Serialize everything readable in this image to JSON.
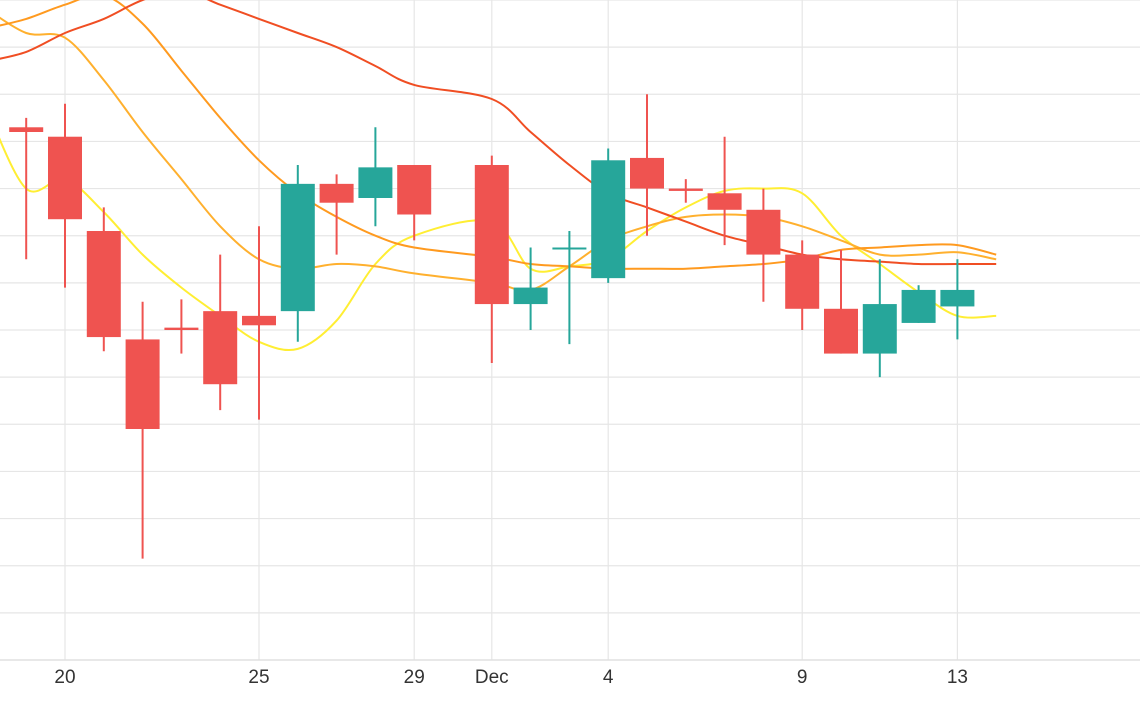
{
  "chart_data": {
    "type": "candlestick",
    "title": "",
    "xlabel": "",
    "ylabel": "",
    "x_ticks": [
      {
        "date": "Nov 20",
        "label": "20"
      },
      {
        "date": "Nov 25",
        "label": "25"
      },
      {
        "date": "Nov 29",
        "label": "29"
      },
      {
        "date": "Dec 1",
        "label": "Dec"
      },
      {
        "date": "Dec 4",
        "label": "4"
      },
      {
        "date": "Dec 9",
        "label": "9"
      },
      {
        "date": "Dec 13",
        "label": "13"
      }
    ],
    "x_range": [
      "Nov 18",
      "Dec 15"
    ],
    "y_range": [
      0,
      14
    ],
    "grid": {
      "horizontal": true,
      "vertical": true
    },
    "colors": {
      "up": "#26a69a",
      "down": "#ef5350",
      "grid": "#e6e6e6",
      "axis": "#e0e0e0"
    },
    "candles": [
      {
        "date": "Nov 19",
        "open": 11.3,
        "high": 11.5,
        "low": 8.5,
        "close": 11.2
      },
      {
        "date": "Nov 20",
        "open": 11.1,
        "high": 11.8,
        "low": 7.9,
        "close": 9.35
      },
      {
        "date": "Nov 21",
        "open": 9.1,
        "high": 9.6,
        "low": 6.55,
        "close": 6.85
      },
      {
        "date": "Nov 22",
        "open": 6.8,
        "high": 7.6,
        "low": 2.15,
        "close": 4.9
      },
      {
        "date": "Nov 23",
        "open": 7.05,
        "high": 7.65,
        "low": 6.5,
        "close": 7.0
      },
      {
        "date": "Nov 24",
        "open": 7.4,
        "high": 8.6,
        "low": 5.3,
        "close": 5.85
      },
      {
        "date": "Nov 25",
        "open": 7.3,
        "high": 9.2,
        "low": 5.1,
        "close": 7.1
      },
      {
        "date": "Nov 26",
        "open": 7.4,
        "high": 10.5,
        "low": 6.75,
        "close": 10.1
      },
      {
        "date": "Nov 27",
        "open": 10.1,
        "high": 10.3,
        "low": 8.6,
        "close": 9.7
      },
      {
        "date": "Nov 28",
        "open": 9.8,
        "high": 11.3,
        "low": 9.2,
        "close": 10.45
      },
      {
        "date": "Nov 29",
        "open": 10.5,
        "high": 10.5,
        "low": 8.9,
        "close": 9.45
      },
      {
        "date": "Dec 1",
        "open": 10.5,
        "high": 10.7,
        "low": 6.3,
        "close": 7.55
      },
      {
        "date": "Dec 2",
        "open": 7.55,
        "high": 8.75,
        "low": 7.0,
        "close": 7.9
      },
      {
        "date": "Dec 3",
        "open": 8.75,
        "high": 9.1,
        "low": 6.7,
        "close": 8.75
      },
      {
        "date": "Dec 4",
        "open": 8.1,
        "high": 10.85,
        "low": 8.0,
        "close": 10.6
      },
      {
        "date": "Dec 5",
        "open": 10.65,
        "high": 12.0,
        "low": 9.0,
        "close": 10.0
      },
      {
        "date": "Dec 6",
        "open": 10.0,
        "high": 10.2,
        "low": 9.7,
        "close": 9.95
      },
      {
        "date": "Dec 7",
        "open": 9.9,
        "high": 11.1,
        "low": 8.8,
        "close": 9.55
      },
      {
        "date": "Dec 8",
        "open": 9.55,
        "high": 10.0,
        "low": 7.6,
        "close": 8.6
      },
      {
        "date": "Dec 9",
        "open": 8.6,
        "high": 8.9,
        "low": 7.0,
        "close": 7.45
      },
      {
        "date": "Dec 10",
        "open": 7.45,
        "high": 8.7,
        "low": 6.5,
        "close": 6.5
      },
      {
        "date": "Dec 11",
        "open": 6.5,
        "high": 8.5,
        "low": 6.0,
        "close": 7.55
      },
      {
        "date": "Dec 12",
        "open": 7.15,
        "high": 7.95,
        "low": 7.15,
        "close": 7.85
      },
      {
        "date": "Dec 13",
        "open": 7.5,
        "high": 8.5,
        "low": 6.8,
        "close": 7.85
      }
    ],
    "series": [
      {
        "style": "line",
        "color": "#ffee33",
        "points": [
          {
            "date": "Nov 18",
            "y": 11.65
          },
          {
            "date": "Nov 19",
            "y": 10.0
          },
          {
            "date": "Nov 20",
            "y": 10.2
          },
          {
            "date": "Nov 21",
            "y": 9.5
          },
          {
            "date": "Nov 22",
            "y": 8.6
          },
          {
            "date": "Nov 23",
            "y": 7.9
          },
          {
            "date": "Nov 24",
            "y": 7.3
          },
          {
            "date": "Nov 25",
            "y": 6.75
          },
          {
            "date": "Nov 26",
            "y": 6.6
          },
          {
            "date": "Nov 27",
            "y": 7.2
          },
          {
            "date": "Nov 28",
            "y": 8.4
          },
          {
            "date": "Nov 29",
            "y": 9.0
          },
          {
            "date": "Dec 1",
            "y": 9.3
          },
          {
            "date": "Dec 2",
            "y": 8.3
          },
          {
            "date": "Dec 3",
            "y": 8.35
          },
          {
            "date": "Dec 4",
            "y": 8.5
          },
          {
            "date": "Dec 5",
            "y": 9.1
          },
          {
            "date": "Dec 6",
            "y": 9.6
          },
          {
            "date": "Dec 7",
            "y": 9.95
          },
          {
            "date": "Dec 8",
            "y": 10.0
          },
          {
            "date": "Dec 9",
            "y": 9.9
          },
          {
            "date": "Dec 10",
            "y": 9.0
          },
          {
            "date": "Dec 11",
            "y": 8.4
          },
          {
            "date": "Dec 12",
            "y": 7.8
          },
          {
            "date": "Dec 13",
            "y": 7.3
          },
          {
            "date": "Dec 14",
            "y": 7.3
          }
        ]
      },
      {
        "style": "line",
        "color": "#ffb02e",
        "points": [
          {
            "date": "Nov 18",
            "y": 13.8
          },
          {
            "date": "Nov 19",
            "y": 13.3
          },
          {
            "date": "Nov 20",
            "y": 13.2
          },
          {
            "date": "Nov 21",
            "y": 12.3
          },
          {
            "date": "Nov 22",
            "y": 11.2
          },
          {
            "date": "Nov 23",
            "y": 10.2
          },
          {
            "date": "Nov 24",
            "y": 9.2
          },
          {
            "date": "Nov 25",
            "y": 8.5
          },
          {
            "date": "Nov 26",
            "y": 8.3
          },
          {
            "date": "Nov 27",
            "y": 8.4
          },
          {
            "date": "Nov 28",
            "y": 8.35
          },
          {
            "date": "Nov 29",
            "y": 8.2
          },
          {
            "date": "Dec 1",
            "y": 8.0
          },
          {
            "date": "Dec 2",
            "y": 7.85
          },
          {
            "date": "Dec 3",
            "y": 8.35
          },
          {
            "date": "Dec 4",
            "y": 8.9
          },
          {
            "date": "Dec 5",
            "y": 9.2
          },
          {
            "date": "Dec 6",
            "y": 9.4
          },
          {
            "date": "Dec 7",
            "y": 9.45
          },
          {
            "date": "Dec 8",
            "y": 9.4
          },
          {
            "date": "Dec 9",
            "y": 9.2
          },
          {
            "date": "Dec 10",
            "y": 8.9
          },
          {
            "date": "Dec 11",
            "y": 8.6
          },
          {
            "date": "Dec 12",
            "y": 8.6
          },
          {
            "date": "Dec 13",
            "y": 8.65
          },
          {
            "date": "Dec 14",
            "y": 8.5
          }
        ]
      },
      {
        "style": "line",
        "color": "#ff9a1f",
        "points": [
          {
            "date": "Nov 18",
            "y": 13.4
          },
          {
            "date": "Nov 19",
            "y": 13.6
          },
          {
            "date": "Nov 20",
            "y": 13.9
          },
          {
            "date": "Nov 21",
            "y": 14.1
          },
          {
            "date": "Nov 22",
            "y": 13.5
          },
          {
            "date": "Nov 23",
            "y": 12.5
          },
          {
            "date": "Nov 24",
            "y": 11.5
          },
          {
            "date": "Nov 25",
            "y": 10.6
          },
          {
            "date": "Nov 26",
            "y": 9.9
          },
          {
            "date": "Nov 27",
            "y": 9.4
          },
          {
            "date": "Nov 28",
            "y": 9.0
          },
          {
            "date": "Nov 29",
            "y": 8.75
          },
          {
            "date": "Dec 1",
            "y": 8.55
          },
          {
            "date": "Dec 2",
            "y": 8.4
          },
          {
            "date": "Dec 3",
            "y": 8.35
          },
          {
            "date": "Dec 4",
            "y": 8.3
          },
          {
            "date": "Dec 5",
            "y": 8.3
          },
          {
            "date": "Dec 6",
            "y": 8.3
          },
          {
            "date": "Dec 7",
            "y": 8.35
          },
          {
            "date": "Dec 8",
            "y": 8.4
          },
          {
            "date": "Dec 9",
            "y": 8.5
          },
          {
            "date": "Dec 10",
            "y": 8.7
          },
          {
            "date": "Dec 11",
            "y": 8.75
          },
          {
            "date": "Dec 12",
            "y": 8.8
          },
          {
            "date": "Dec 13",
            "y": 8.8
          },
          {
            "date": "Dec 14",
            "y": 8.6
          }
        ]
      },
      {
        "style": "line",
        "color": "#f04e23",
        "points": [
          {
            "date": "Nov 18",
            "y": 12.7
          },
          {
            "date": "Nov 19",
            "y": 12.9
          },
          {
            "date": "Nov 20",
            "y": 13.3
          },
          {
            "date": "Nov 21",
            "y": 13.6
          },
          {
            "date": "Nov 22",
            "y": 14.0
          },
          {
            "date": "Nov 23",
            "y": 14.2
          },
          {
            "date": "Nov 24",
            "y": 13.9
          },
          {
            "date": "Nov 25",
            "y": 13.6
          },
          {
            "date": "Nov 26",
            "y": 13.3
          },
          {
            "date": "Nov 27",
            "y": 13.0
          },
          {
            "date": "Nov 28",
            "y": 12.6
          },
          {
            "date": "Nov 29",
            "y": 12.2
          },
          {
            "date": "Dec 1",
            "y": 11.9
          },
          {
            "date": "Dec 2",
            "y": 11.2
          },
          {
            "date": "Dec 3",
            "y": 10.5
          },
          {
            "date": "Dec 4",
            "y": 9.9
          },
          {
            "date": "Dec 5",
            "y": 9.6
          },
          {
            "date": "Dec 6",
            "y": 9.3
          },
          {
            "date": "Dec 7",
            "y": 9.0
          },
          {
            "date": "Dec 8",
            "y": 8.8
          },
          {
            "date": "Dec 9",
            "y": 8.6
          },
          {
            "date": "Dec 10",
            "y": 8.5
          },
          {
            "date": "Dec 11",
            "y": 8.45
          },
          {
            "date": "Dec 12",
            "y": 8.4
          },
          {
            "date": "Dec 13",
            "y": 8.4
          },
          {
            "date": "Dec 14",
            "y": 8.4
          }
        ]
      }
    ]
  }
}
